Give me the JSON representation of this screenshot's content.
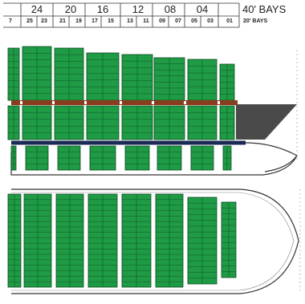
{
  "legend": {
    "forty_foot": "40' BAYS",
    "twenty_foot": "20' BAYS"
  },
  "bays_40": [
    "24",
    "20",
    "16",
    "12",
    "08",
    "04"
  ],
  "bays_20": [
    "7",
    "25",
    "23",
    "21",
    "19",
    "17",
    "15",
    "13",
    "11",
    "09",
    "07",
    "05",
    "03",
    "01"
  ],
  "colors": {
    "container": "#1f9a45",
    "container_line": "#0a4d1f",
    "hatch_band": "#8a3d1c",
    "keel": "#1b2a55",
    "bow": "#4a4a4a"
  },
  "views": [
    "side-profile",
    "deck-plan"
  ]
}
